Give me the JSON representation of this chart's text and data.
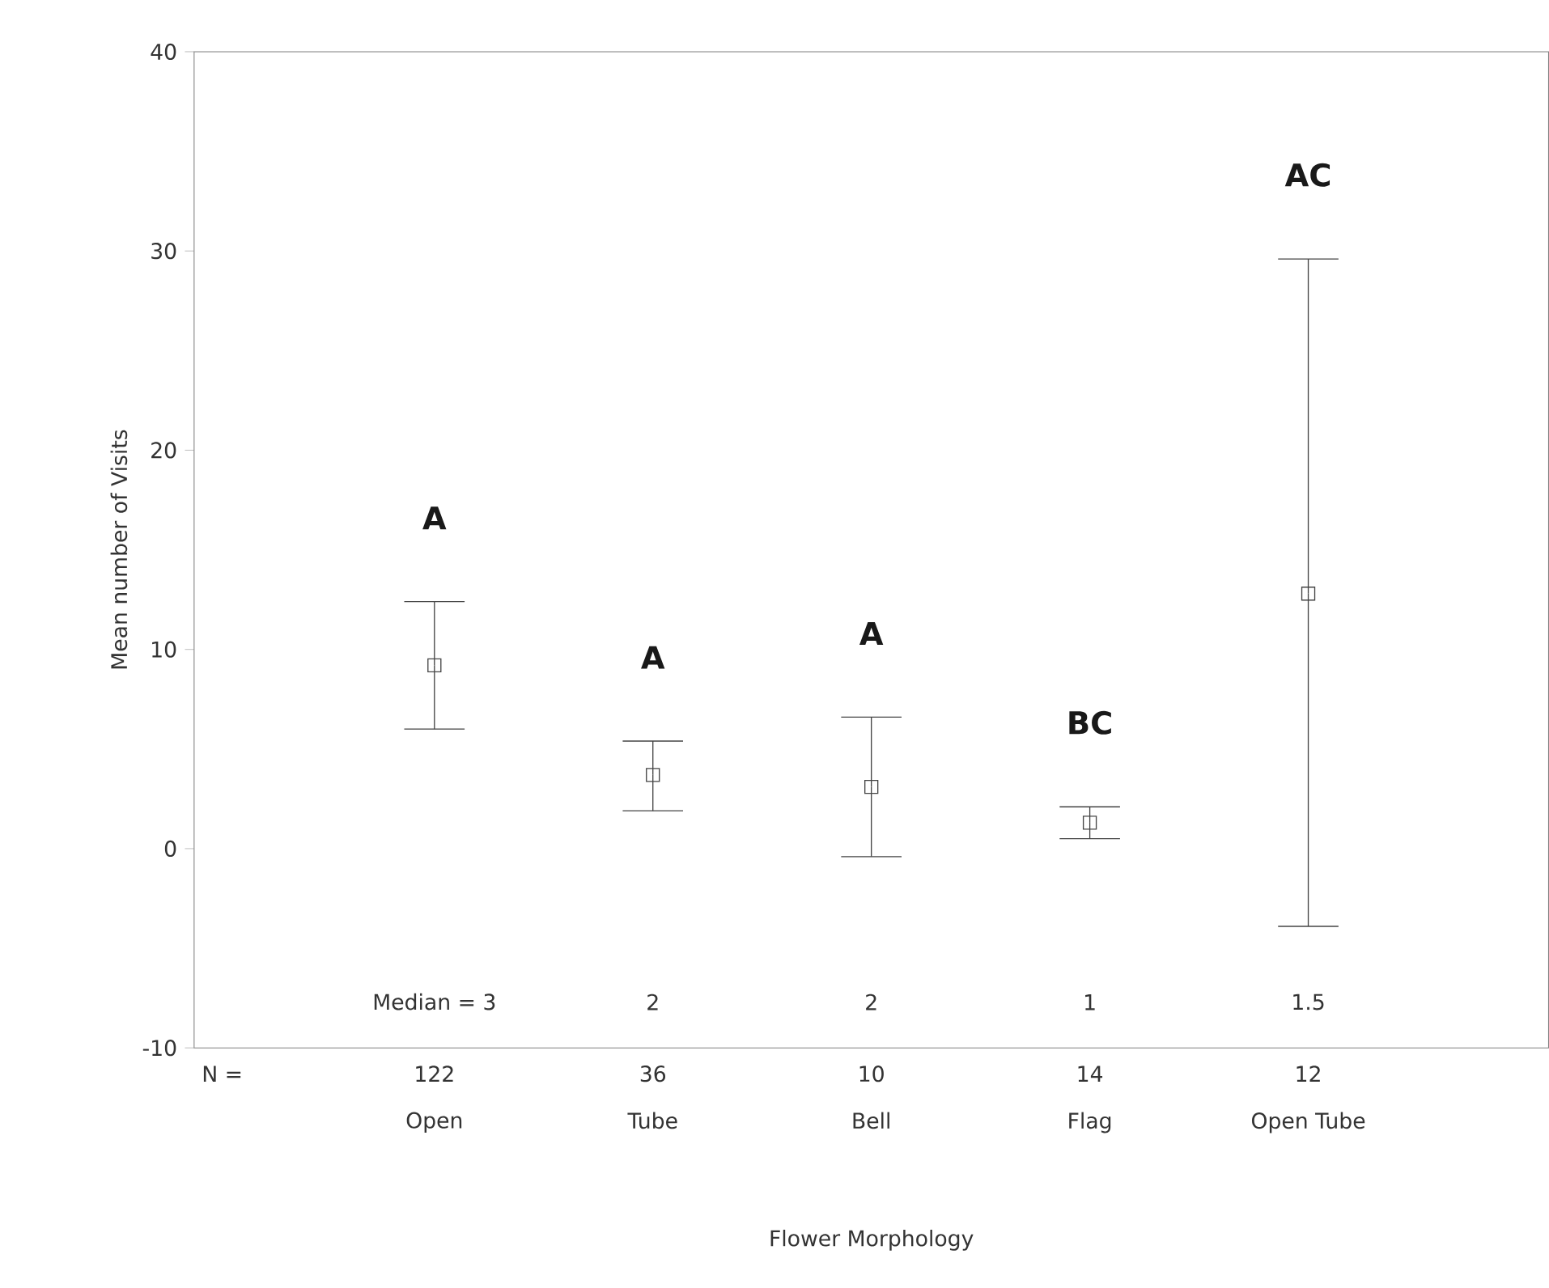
{
  "chart_data": {
    "type": "scatter",
    "xlabel": "Flower Morphology",
    "ylabel": "Mean number of Visits",
    "categories": [
      "Open",
      "Tube",
      "Bell",
      "Flag",
      "Open Tube"
    ],
    "series": [
      {
        "color": "#444444",
        "values": [
          9.2,
          3.7,
          3.1,
          1.3,
          12.8
        ],
        "errors": [
          [
            6.0,
            12.4
          ],
          [
            1.9,
            5.4
          ],
          [
            -0.4,
            6.6
          ],
          [
            0.5,
            2.1
          ],
          [
            -3.9,
            29.6
          ]
        ]
      }
    ],
    "marker": "square",
    "ylim": [
      -10,
      40
    ],
    "yticks": [
      -10,
      0,
      10,
      20,
      30,
      40
    ],
    "annotations": [
      "A",
      "A",
      "A",
      "BC",
      "AC",
      "Median = 3",
      "2",
      "2",
      "1",
      "1.5",
      "N =",
      "122",
      "36",
      "10",
      "14",
      "12"
    ]
  }
}
